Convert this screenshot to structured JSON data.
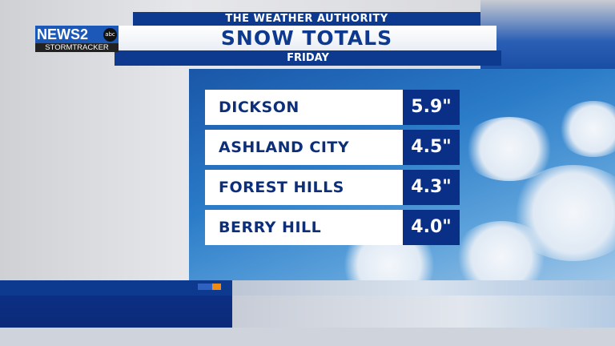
{
  "header": {
    "kicker": "THE WEATHER AUTHORITY",
    "title": "SNOW TOTALS",
    "subtitle": "FRIDAY"
  },
  "logo": {
    "brand": "NEWS2",
    "network": "abc",
    "sub": "STORMTRACKER"
  },
  "rows": [
    {
      "location": "DICKSON",
      "total": "5.9\""
    },
    {
      "location": "ASHLAND CITY",
      "total": "4.5\""
    },
    {
      "location": "FOREST HILLS",
      "total": "4.3\""
    },
    {
      "location": "BERRY HILL",
      "total": "4.0\""
    }
  ],
  "colors": {
    "navy": "#0d3a8f",
    "value_box": "#0a2f86",
    "accent_orange": "#f08a12"
  }
}
